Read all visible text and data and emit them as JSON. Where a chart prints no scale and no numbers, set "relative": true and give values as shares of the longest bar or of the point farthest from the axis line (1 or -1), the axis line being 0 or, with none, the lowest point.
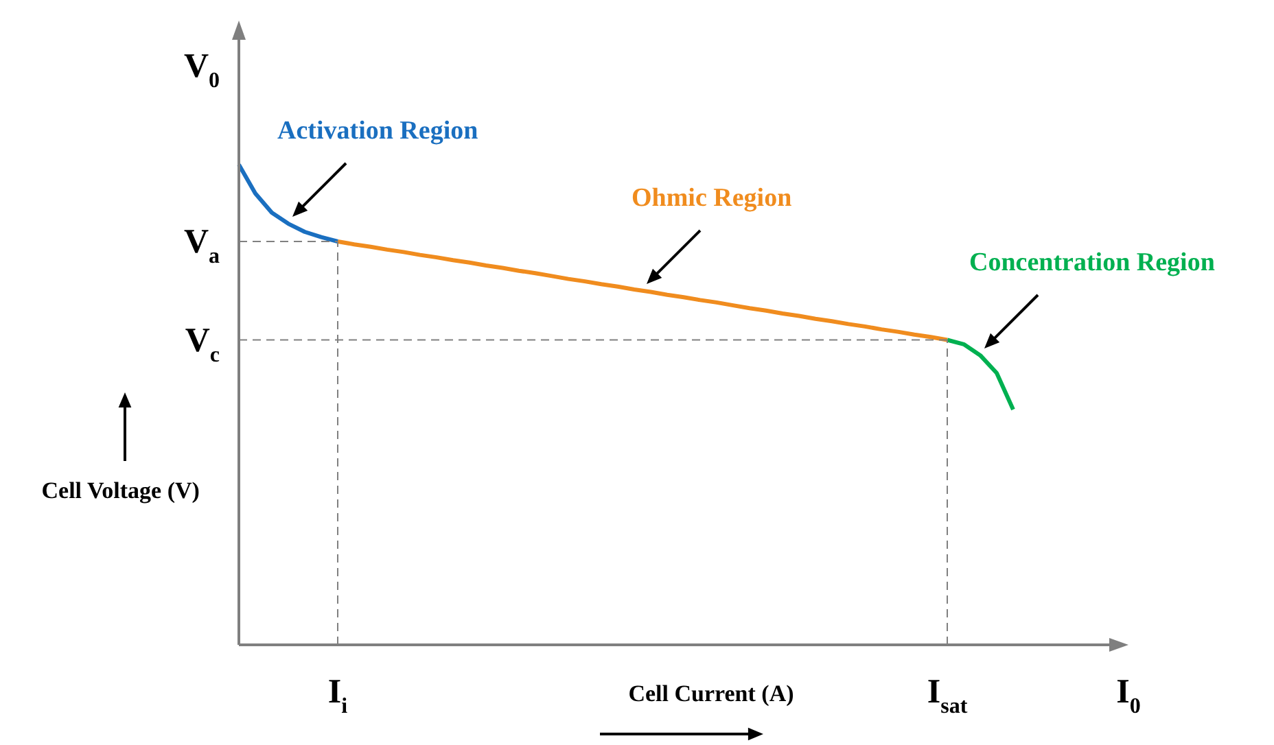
{
  "chart_data": {
    "type": "line",
    "relative": true,
    "xlabel": "Cell Current (A)",
    "ylabel": "Cell Voltage (V)",
    "legend": false,
    "marker": "none",
    "line_style": "solid",
    "categories": [
      null,
      null,
      null,
      null,
      null,
      null,
      "I$_{i}$",
      null,
      null,
      null,
      null,
      null,
      null,
      null,
      null,
      null,
      null,
      null,
      null,
      null,
      null,
      null,
      null,
      null,
      null,
      null,
      null,
      null,
      null,
      null,
      null,
      null,
      null,
      null,
      null,
      null,
      null,
      null,
      null,
      null,
      null,
      null,
      null,
      "I$_{sat}$",
      null,
      null,
      null,
      null,
      null,
      null,
      null,
      null,
      null,
      null,
      "I$_{0}$"
    ],
    "series": [
      {
        "name": "Activation Region",
        "color": "#1a6fc0",
        "values": [
          1,
          0.94,
          0.9,
          0.877,
          0.86,
          0.849,
          0.84,
          null,
          null,
          null,
          null,
          null,
          null,
          null,
          null,
          null,
          null,
          null,
          null,
          null,
          null,
          null,
          null,
          null,
          null,
          null,
          null,
          null,
          null,
          null,
          null,
          null,
          null,
          null,
          null,
          null,
          null,
          null,
          null,
          null,
          null,
          null,
          null,
          null,
          null,
          null,
          null,
          null,
          null,
          null,
          null,
          null,
          null,
          null,
          null
        ]
      },
      {
        "name": "Ohmic Region",
        "color": "#f08c1e",
        "values": [
          null,
          null,
          null,
          null,
          null,
          null,
          0.84,
          0.834,
          0.829,
          0.823,
          0.818,
          0.812,
          0.807,
          0.801,
          0.796,
          0.79,
          0.785,
          0.779,
          0.774,
          0.768,
          0.762,
          0.757,
          0.751,
          0.746,
          0.74,
          0.735,
          0.729,
          0.724,
          0.718,
          0.713,
          0.707,
          0.701,
          0.696,
          0.69,
          0.685,
          0.679,
          0.674,
          0.668,
          0.663,
          0.657,
          0.652,
          0.646,
          0.641,
          0.635,
          null,
          null,
          null,
          null,
          null,
          null,
          null,
          null,
          null,
          null,
          null
        ]
      },
      {
        "name": "Concentration Region",
        "color": "#00b050",
        "values": [
          null,
          null,
          null,
          null,
          null,
          null,
          null,
          null,
          null,
          null,
          null,
          null,
          null,
          null,
          null,
          null,
          null,
          null,
          null,
          null,
          null,
          null,
          null,
          null,
          null,
          null,
          null,
          null,
          null,
          null,
          null,
          null,
          null,
          null,
          null,
          null,
          null,
          null,
          null,
          null,
          null,
          null,
          null,
          0.635,
          0.626,
          0.603,
          0.566,
          0.49,
          null,
          null,
          null,
          null,
          null,
          null,
          null
        ]
      }
    ],
    "ref_lines": [
      {
        "axis": "y",
        "value": 0.84,
        "color": "#808080",
        "line_style": "dashed"
      },
      {
        "axis": "y",
        "value": 0.635,
        "color": "#808080",
        "line_style": "dashed"
      },
      {
        "axis": "x",
        "value": "I$_{i}$",
        "color": "#808080",
        "line_style": "dashed"
      },
      {
        "axis": "x",
        "value": "I$_{sat}$",
        "color": "#808080",
        "line_style": "dashed"
      }
    ],
    "annotations": [
      "V$_{a}$",
      "V$_{c}$",
      "V$_{0}$"
    ]
  }
}
